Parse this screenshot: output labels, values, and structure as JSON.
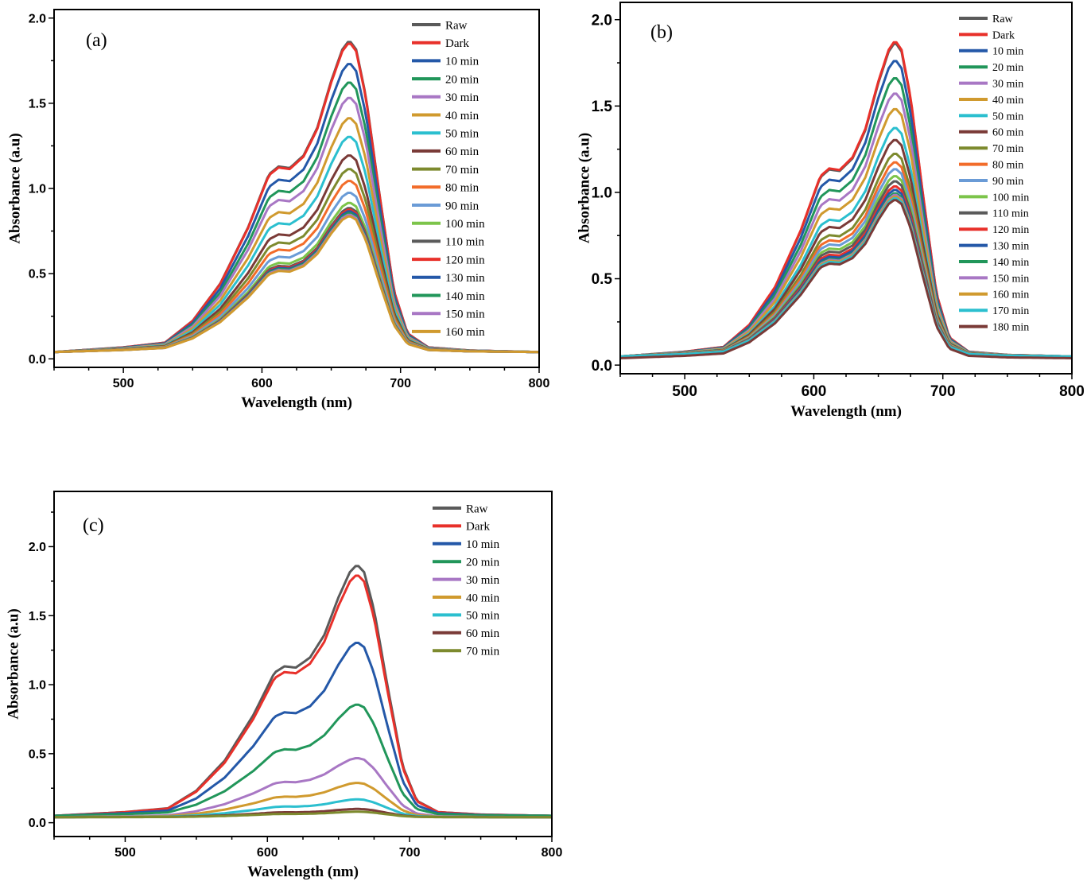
{
  "colors": {
    "Raw": "#5a5a5a",
    "Dark": "#e8302a",
    "10 min": "#2458a8",
    "20 min": "#21965a",
    "30 min": "#a877c4",
    "40 min": "#d09a2e",
    "50 min": "#2bbfcf",
    "60 min": "#7a3a37",
    "70 min": "#7d8a2e",
    "80 min": "#f26c2a",
    "90 min": "#6a9bd6",
    "100 min": "#7cc44a",
    "110 min": "#5a5a5a",
    "120 min": "#e8302a",
    "130 min": "#2458a8",
    "140 min": "#21965a",
    "150 min": "#a877c4",
    "160 min": "#d09a2e",
    "170 min": "#2bbfcf",
    "180 min": "#7a3a37"
  },
  "chart_data": [
    {
      "type": "line",
      "panel_label": "(a)",
      "xlabel": "Wavelength (nm)",
      "ylabel": "Absorbance (a.u)",
      "xlim": [
        450,
        800
      ],
      "ylim": [
        -0.05,
        2.05
      ],
      "xticks": [
        500,
        600,
        700,
        800
      ],
      "yticks": [
        0.0,
        0.5,
        1.0,
        1.5,
        2.0
      ],
      "ytick_labels": [
        "0.0",
        "0.5",
        "1.0",
        "1.5",
        "2.0"
      ],
      "legend_position": "top-right",
      "profile_x": [
        450,
        500,
        530,
        550,
        570,
        590,
        605,
        612,
        620,
        630,
        640,
        650,
        658,
        663,
        668,
        675,
        685,
        695,
        705,
        720,
        750,
        800
      ],
      "profile_shape": [
        0,
        0.015,
        0.03,
        0.1,
        0.22,
        0.4,
        0.57,
        0.595,
        0.59,
        0.63,
        0.72,
        0.87,
        0.97,
        1.0,
        0.97,
        0.82,
        0.5,
        0.2,
        0.06,
        0.015,
        0.005,
        0.0
      ],
      "series": [
        {
          "name": "Raw",
          "peak": 1.87,
          "baseline": 0.04
        },
        {
          "name": "Dark",
          "peak": 1.86,
          "baseline": 0.04
        },
        {
          "name": "10 min",
          "peak": 1.74,
          "baseline": 0.04
        },
        {
          "name": "20 min",
          "peak": 1.63,
          "baseline": 0.04
        },
        {
          "name": "30 min",
          "peak": 1.54,
          "baseline": 0.04
        },
        {
          "name": "40 min",
          "peak": 1.42,
          "baseline": 0.04
        },
        {
          "name": "50 min",
          "peak": 1.31,
          "baseline": 0.04
        },
        {
          "name": "60 min",
          "peak": 1.2,
          "baseline": 0.04
        },
        {
          "name": "70 min",
          "peak": 1.12,
          "baseline": 0.04
        },
        {
          "name": "80 min",
          "peak": 1.05,
          "baseline": 0.04
        },
        {
          "name": "90 min",
          "peak": 0.98,
          "baseline": 0.04
        },
        {
          "name": "100 min",
          "peak": 0.92,
          "baseline": 0.04
        },
        {
          "name": "110 min",
          "peak": 0.89,
          "baseline": 0.04
        },
        {
          "name": "120 min",
          "peak": 0.88,
          "baseline": 0.04
        },
        {
          "name": "130 min",
          "peak": 0.87,
          "baseline": 0.04
        },
        {
          "name": "140 min",
          "peak": 0.86,
          "baseline": 0.04
        },
        {
          "name": "150 min",
          "peak": 0.85,
          "baseline": 0.04
        },
        {
          "name": "160 min",
          "peak": 0.84,
          "baseline": 0.04
        }
      ]
    },
    {
      "type": "line",
      "panel_label": "(b)",
      "xlabel": "Wavelength (nm)",
      "ylabel": "Absorbance (a.u)",
      "xlim": [
        450,
        800
      ],
      "ylim": [
        -0.05,
        2.1
      ],
      "xticks": [
        500,
        600,
        700,
        800
      ],
      "yticks": [
        0.0,
        0.5,
        1.0,
        1.5,
        2.0
      ],
      "ytick_labels": [
        "0.0",
        "0.5",
        "1.0",
        "1.5",
        "2.0"
      ],
      "legend_position": "top-right",
      "profile_x": [
        450,
        500,
        530,
        550,
        570,
        590,
        605,
        612,
        620,
        630,
        640,
        650,
        658,
        663,
        668,
        675,
        685,
        695,
        705,
        720,
        750,
        800
      ],
      "profile_shape": [
        0,
        0.015,
        0.03,
        0.1,
        0.22,
        0.4,
        0.57,
        0.595,
        0.59,
        0.63,
        0.72,
        0.87,
        0.97,
        1.0,
        0.97,
        0.82,
        0.5,
        0.2,
        0.06,
        0.015,
        0.005,
        0.0
      ],
      "series": [
        {
          "name": "Raw",
          "peak": 1.87,
          "baseline": 0.05
        },
        {
          "name": "Dark",
          "peak": 1.88,
          "baseline": 0.05
        },
        {
          "name": "10 min",
          "peak": 1.77,
          "baseline": 0.05
        },
        {
          "name": "20 min",
          "peak": 1.67,
          "baseline": 0.05
        },
        {
          "name": "30 min",
          "peak": 1.58,
          "baseline": 0.05
        },
        {
          "name": "40 min",
          "peak": 1.49,
          "baseline": 0.05
        },
        {
          "name": "50 min",
          "peak": 1.38,
          "baseline": 0.05
        },
        {
          "name": "60 min",
          "peak": 1.31,
          "baseline": 0.05
        },
        {
          "name": "70 min",
          "peak": 1.23,
          "baseline": 0.05
        },
        {
          "name": "80 min",
          "peak": 1.18,
          "baseline": 0.05
        },
        {
          "name": "90 min",
          "peak": 1.14,
          "baseline": 0.05
        },
        {
          "name": "100 min",
          "peak": 1.1,
          "baseline": 0.05
        },
        {
          "name": "110 min",
          "peak": 1.07,
          "baseline": 0.05
        },
        {
          "name": "120 min",
          "peak": 1.04,
          "baseline": 0.05
        },
        {
          "name": "130 min",
          "peak": 1.02,
          "baseline": 0.05
        },
        {
          "name": "140 min",
          "peak": 1.0,
          "baseline": 0.05
        },
        {
          "name": "150 min",
          "peak": 0.99,
          "baseline": 0.05
        },
        {
          "name": "160 min",
          "peak": 0.98,
          "baseline": 0.05
        },
        {
          "name": "170 min",
          "peak": 0.97,
          "baseline": 0.05
        },
        {
          "name": "180 min",
          "peak": 0.96,
          "baseline": 0.04
        }
      ]
    },
    {
      "type": "line",
      "panel_label": "(c)",
      "xlabel": "Wavelength (nm)",
      "ylabel": "Absorbance (a.u)",
      "xlim": [
        450,
        800
      ],
      "ylim": [
        -0.1,
        2.4
      ],
      "xticks": [
        500,
        600,
        700,
        800
      ],
      "yticks": [
        0.0,
        0.5,
        1.0,
        1.5,
        2.0
      ],
      "ytick_labels": [
        "0.0",
        "0.5",
        "1.0",
        "1.5",
        "2.0"
      ],
      "legend_position": "top-right",
      "profile_x": [
        450,
        500,
        530,
        550,
        570,
        590,
        605,
        612,
        620,
        630,
        640,
        650,
        658,
        663,
        668,
        675,
        685,
        695,
        705,
        720,
        750,
        800
      ],
      "profile_shape": [
        0,
        0.015,
        0.03,
        0.1,
        0.22,
        0.4,
        0.57,
        0.595,
        0.59,
        0.63,
        0.72,
        0.87,
        0.97,
        1.0,
        0.97,
        0.82,
        0.5,
        0.2,
        0.06,
        0.015,
        0.005,
        0.0
      ],
      "series": [
        {
          "name": "Raw",
          "peak": 1.87,
          "baseline": 0.05
        },
        {
          "name": "Dark",
          "peak": 1.8,
          "baseline": 0.05
        },
        {
          "name": "10 min",
          "peak": 1.31,
          "baseline": 0.05
        },
        {
          "name": "20 min",
          "peak": 0.86,
          "baseline": 0.05
        },
        {
          "name": "30 min",
          "peak": 0.47,
          "baseline": 0.04
        },
        {
          "name": "40 min",
          "peak": 0.29,
          "baseline": 0.04
        },
        {
          "name": "50 min",
          "peak": 0.17,
          "baseline": 0.04
        },
        {
          "name": "60 min",
          "peak": 0.1,
          "baseline": 0.04
        },
        {
          "name": "70 min",
          "peak": 0.08,
          "baseline": 0.04
        }
      ]
    }
  ]
}
